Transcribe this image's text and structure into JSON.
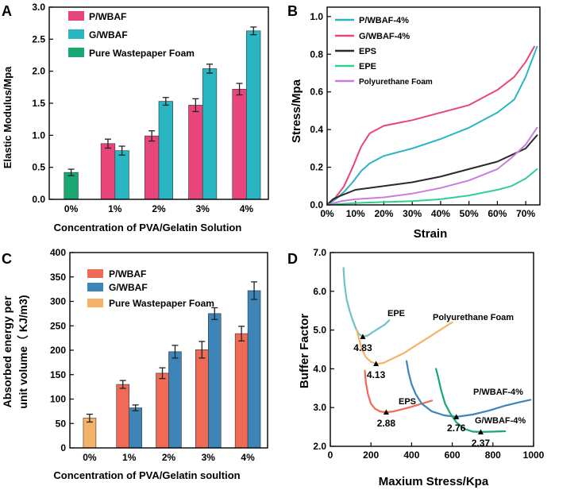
{
  "colors": {
    "pink": "#e8457a",
    "teal": "#29b5c2",
    "green": "#1aa772",
    "salmon": "#ef6b55",
    "steel": "#3d85b8",
    "orange": "#f5b36a",
    "black": "#2a2a2a",
    "epe_green": "#2fd18c",
    "purple": "#c77de0"
  },
  "chart_data": [
    {
      "panel": "A",
      "type": "bar",
      "categories": [
        "0%",
        "1%",
        "2%",
        "3%",
        "4%"
      ],
      "series": [
        {
          "name": "P/WBAF",
          "values": [
            null,
            0.87,
            0.99,
            1.47,
            1.72
          ],
          "errors": [
            null,
            0.07,
            0.08,
            0.1,
            0.09
          ]
        },
        {
          "name": "G/WBAF",
          "values": [
            null,
            0.76,
            1.53,
            2.04,
            2.63
          ],
          "errors": [
            null,
            0.07,
            0.06,
            0.07,
            0.06
          ]
        },
        {
          "name": "Pure Wastepaper Foam",
          "values": [
            0.42,
            null,
            null,
            null,
            null
          ],
          "errors": [
            0.05,
            null,
            null,
            null,
            null
          ]
        }
      ],
      "title": "",
      "xlabel": "Concentration of PVA/Gelatin Solution",
      "ylabel": "Elastic Modulus/Mpa",
      "ylim": [
        0,
        3.0
      ],
      "yticks": [
        "0.0",
        "0.5",
        "1.0",
        "1.5",
        "2.0",
        "2.5",
        "3.0"
      ],
      "legend_position": "top-left"
    },
    {
      "panel": "B",
      "type": "line",
      "series": [
        {
          "name": "P/WBAF-4%",
          "x": [
            0,
            3,
            6,
            9,
            12,
            15,
            20,
            30,
            40,
            50,
            55,
            60,
            66,
            70,
            74
          ],
          "y": [
            0,
            0.03,
            0.07,
            0.12,
            0.18,
            0.22,
            0.26,
            0.3,
            0.35,
            0.41,
            0.45,
            0.49,
            0.56,
            0.68,
            0.84
          ]
        },
        {
          "name": "G/WBAF-4%",
          "x": [
            0,
            3,
            6,
            9,
            12,
            15,
            20,
            30,
            40,
            50,
            55,
            60,
            66,
            70,
            73
          ],
          "y": [
            0,
            0.04,
            0.1,
            0.2,
            0.31,
            0.38,
            0.42,
            0.45,
            0.49,
            0.53,
            0.57,
            0.61,
            0.68,
            0.76,
            0.84
          ]
        },
        {
          "name": "EPS",
          "x": [
            0,
            2,
            5,
            10,
            20,
            30,
            40,
            50,
            60,
            70,
            74
          ],
          "y": [
            0,
            0.03,
            0.05,
            0.08,
            0.1,
            0.12,
            0.15,
            0.19,
            0.23,
            0.3,
            0.37
          ]
        },
        {
          "name": "EPE",
          "x": [
            0,
            5,
            10,
            20,
            30,
            40,
            50,
            60,
            65,
            70,
            74
          ],
          "y": [
            0,
            0.005,
            0.01,
            0.015,
            0.02,
            0.03,
            0.05,
            0.08,
            0.1,
            0.14,
            0.19
          ]
        },
        {
          "name": "Polyurethane Foam",
          "x": [
            0,
            5,
            10,
            20,
            30,
            40,
            50,
            60,
            65,
            70,
            74
          ],
          "y": [
            0,
            0.02,
            0.03,
            0.04,
            0.06,
            0.09,
            0.13,
            0.19,
            0.25,
            0.32,
            0.41
          ]
        }
      ],
      "xlabel": "Strain",
      "ylabel": "Stress/Mpa",
      "xlim": [
        0,
        75
      ],
      "ylim": [
        0,
        1.05
      ],
      "xticks": [
        "0%",
        "10%",
        "20%",
        "30%",
        "40%",
        "50%",
        "60%",
        "70%"
      ],
      "yticks": [
        "0.0",
        "0.2",
        "0.4",
        "0.6",
        "0.8",
        "1.0"
      ],
      "legend_position": "top-left"
    },
    {
      "panel": "C",
      "type": "bar",
      "categories": [
        "0%",
        "1%",
        "2%",
        "3%",
        "4%"
      ],
      "series": [
        {
          "name": "P/WBAF",
          "values": [
            null,
            130,
            153,
            201,
            234
          ],
          "errors": [
            null,
            8,
            11,
            17,
            15
          ]
        },
        {
          "name": "G/WBAF",
          "values": [
            null,
            82,
            197,
            275,
            322
          ],
          "errors": [
            null,
            6,
            13,
            12,
            18
          ]
        },
        {
          "name": "Pure Wastepaper Foam",
          "values": [
            61,
            null,
            null,
            null,
            null
          ],
          "errors": [
            8,
            null,
            null,
            null,
            null
          ]
        }
      ],
      "xlabel": "Concentration of PVA/Gelatin soultion",
      "ylabel_line1": "Absorbed energy per",
      "ylabel_line2": "unit volume（ KJ/m3)",
      "ylim": [
        0,
        400
      ],
      "yticks": [
        "0",
        "50",
        "100",
        "150",
        "200",
        "250",
        "300",
        "350",
        "400"
      ],
      "legend_position": "top-left"
    },
    {
      "panel": "D",
      "type": "line",
      "series": [
        {
          "name": "EPE",
          "x": [
            65,
            70,
            80,
            95,
            110,
            125,
            140,
            160,
            185,
            210,
            240,
            270,
            290
          ],
          "y": [
            6.6,
            6.2,
            5.8,
            5.5,
            5.25,
            5.05,
            4.9,
            4.83,
            4.86,
            4.95,
            5.05,
            5.15,
            5.25
          ]
        },
        {
          "name": "Polyurethane Foam",
          "x": [
            130,
            140,
            155,
            175,
            200,
            225,
            260,
            300,
            360,
            420,
            480,
            540,
            600
          ],
          "y": [
            5.0,
            4.8,
            4.5,
            4.3,
            4.18,
            4.13,
            4.15,
            4.25,
            4.4,
            4.6,
            4.8,
            5.0,
            5.2
          ]
        },
        {
          "name": "EPS",
          "x": [
            170,
            175,
            185,
            200,
            220,
            245,
            275,
            310,
            350,
            400,
            450,
            500
          ],
          "y": [
            3.95,
            3.65,
            3.35,
            3.1,
            2.97,
            2.9,
            2.88,
            2.9,
            2.95,
            3.02,
            3.1,
            3.18
          ]
        },
        {
          "name": "P/WBAF-4%",
          "x": [
            375,
            385,
            400,
            420,
            450,
            500,
            560,
            620,
            700,
            780,
            860,
            940,
            985
          ],
          "y": [
            4.2,
            3.9,
            3.6,
            3.35,
            3.1,
            2.9,
            2.8,
            2.76,
            2.82,
            2.92,
            3.05,
            3.15,
            3.2
          ]
        },
        {
          "name": "G/WBAF-4%",
          "x": [
            520,
            530,
            545,
            565,
            590,
            620,
            660,
            700,
            740,
            800,
            860
          ],
          "y": [
            4.0,
            3.8,
            3.45,
            3.1,
            2.85,
            2.62,
            2.45,
            2.38,
            2.37,
            2.38,
            2.39
          ]
        }
      ],
      "markers": [
        {
          "label": "4.83",
          "x": 160,
          "y": 4.83
        },
        {
          "label": "4.13",
          "x": 225,
          "y": 4.13
        },
        {
          "label": "2.88",
          "x": 275,
          "y": 2.88
        },
        {
          "label": "2.76",
          "x": 620,
          "y": 2.76
        },
        {
          "label": "2.37",
          "x": 740,
          "y": 2.37
        }
      ],
      "xlabel": "Maxium Stress/Kpa",
      "ylabel": "Buffer Factor",
      "xlim": [
        0,
        1000
      ],
      "ylim": [
        2.0,
        7.0
      ],
      "xticks": [
        "0",
        "200",
        "400",
        "600",
        "800",
        "1000"
      ],
      "yticks": [
        "2.0",
        "3.0",
        "4.0",
        "5.0",
        "6.0",
        "7.0"
      ]
    }
  ]
}
